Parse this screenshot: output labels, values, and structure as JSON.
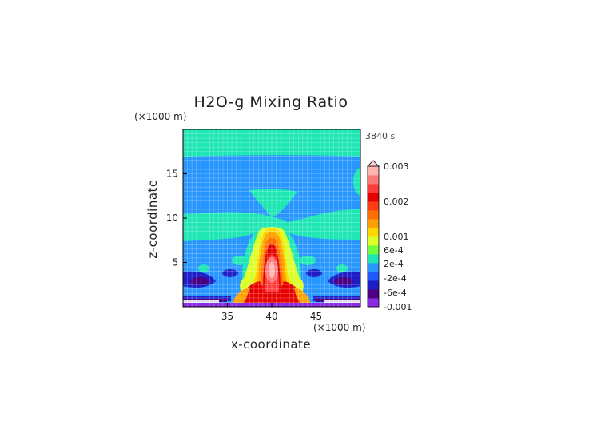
{
  "chart_data": {
    "type": "heatmap",
    "title": "H2O-g Mixing Ratio",
    "time_label": "3840 s",
    "xlabel": "x-coordinate",
    "ylabel": "z-coordinate",
    "x_unit": "(×1000 m)",
    "z_unit": "(×1000 m)",
    "xlim": [
      30,
      50
    ],
    "ylim": [
      0,
      20
    ],
    "x_ticks": [
      35,
      40,
      45
    ],
    "y_ticks": [
      5,
      10,
      15
    ],
    "grid": true,
    "colorbar": {
      "position": "right",
      "tick_labels": [
        "0.003",
        "0.002",
        "0.001",
        "6e-4",
        "2e-4",
        "-2e-4",
        "-6e-4",
        "-0.001"
      ],
      "colors": [
        "#8a2be2",
        "#4b0082",
        "#1e1ec8",
        "#1e5aff",
        "#2896ff",
        "#1ee6b4",
        "#6eff3c",
        "#dcff28",
        "#ffd700",
        "#ffa000",
        "#ff6e00",
        "#ff3c14",
        "#e60000",
        "#ff3c3c",
        "#ff7878",
        "#ffb4b4"
      ]
    },
    "features": [
      {
        "name": "upper layer",
        "z_range": [
          17,
          20
        ],
        "level": "2e-4 to 6e-4"
      },
      {
        "name": "mid band",
        "z_range": [
          7.5,
          17
        ],
        "level": "-2e-4 to 2e-4"
      },
      {
        "name": "central plume",
        "x": 40,
        "z_range": [
          0,
          9
        ],
        "peak": "0.003"
      },
      {
        "name": "near-surface dry band",
        "z_range": [
          0,
          1
        ],
        "level": "-0.001"
      }
    ]
  }
}
